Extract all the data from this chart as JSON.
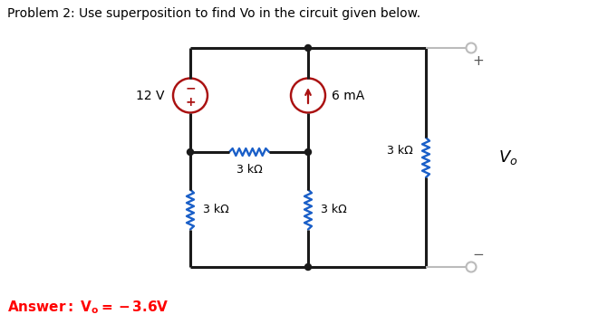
{
  "title": "Problem 2: Use superposition to find Vo in the circuit given below.",
  "title_fontsize": 10,
  "answer_fontsize": 11,
  "answer_color": "#ff0000",
  "bg_color": "#ffffff",
  "wire_color": "#1a1a1a",
  "source_color": "#aa1111",
  "resistor_blue": "#1a5fc8",
  "terminal_color": "#bbbbbb",
  "source_12V_label": "12 V",
  "source_6mA_label": "6 mA",
  "res_horiz_label": "3 kΩ",
  "res_left_label": "3 kΩ",
  "res_middle_label": "3 kΩ",
  "res_right_label": "3 kΩ",
  "lw_main": 2.2,
  "lw_res": 1.7,
  "lw_src": 1.6,
  "lw_term": 1.5,
  "res_amp": 4,
  "res_half": 22,
  "res_n": 6
}
